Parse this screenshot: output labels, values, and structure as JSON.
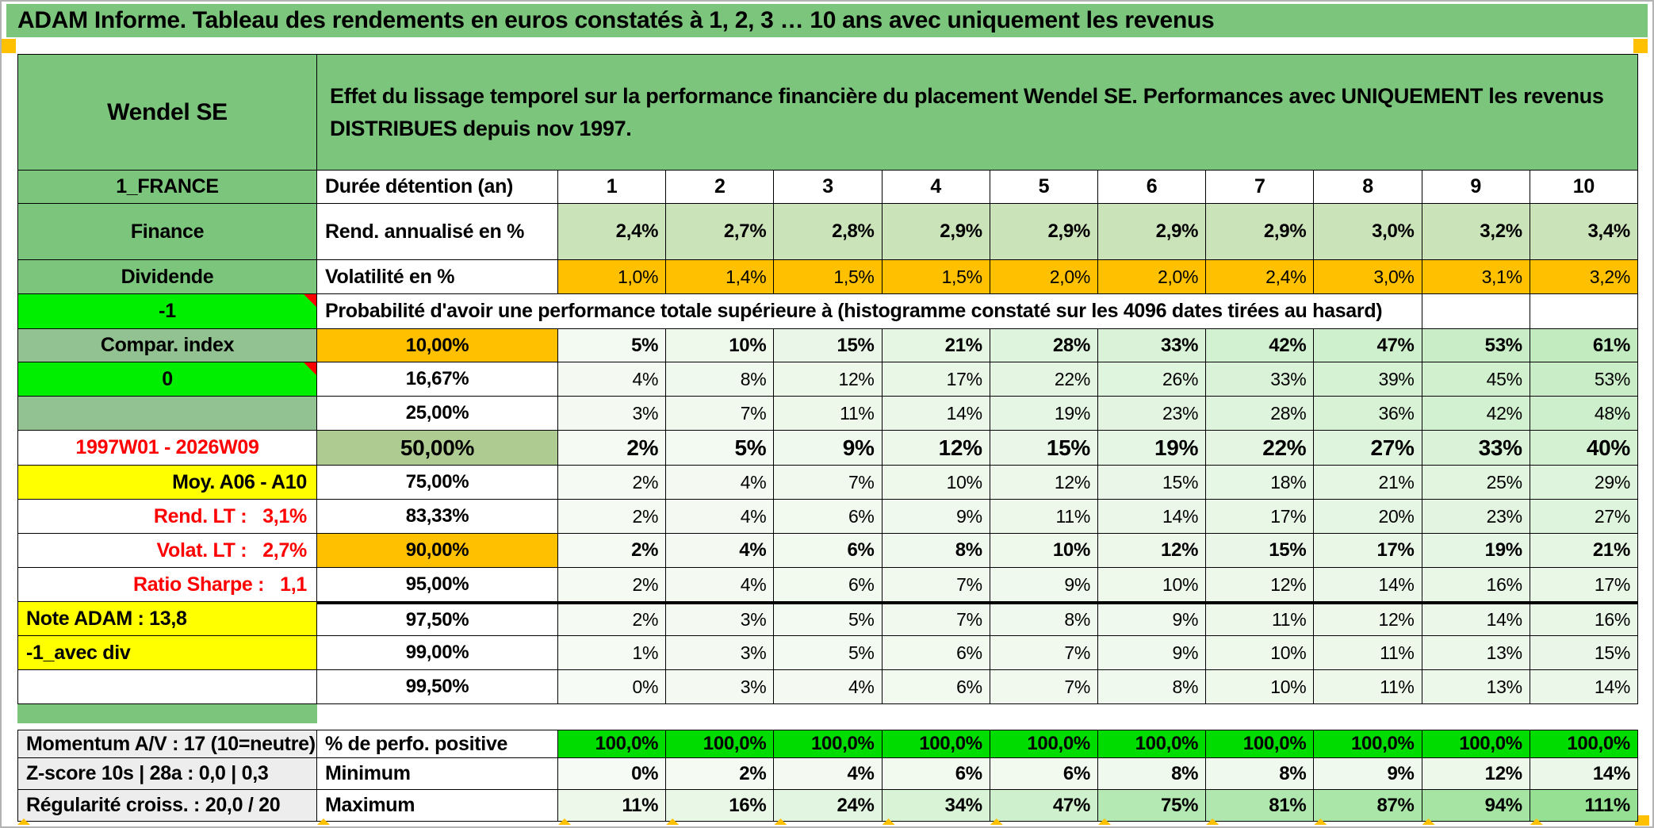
{
  "page_title": "ADAM Informe. Tableau des rendements en euros constatés à 1, 2, 3 … 10 ans avec uniquement les revenus",
  "colors": {
    "title_green": "#7CC57C",
    "sage_green": "#92C292",
    "olive_green": "#AECC92",
    "rend_green": "#CAE3B9",
    "orange": "#FFC000",
    "bright_green": "#00EE00",
    "perfo_green": "#00DB00",
    "yellow": "#FFFF00",
    "label_gray": "#EDEDED",
    "red_text": "#FF0000",
    "gradient_start": "#F7FBF5",
    "gradient_end": "#96E094"
  },
  "table": {
    "rows": [
      {
        "kind": "header",
        "left": "Wendel SE",
        "desc": "Effet du lissage temporel sur la performance financière du placement Wendel SE. Performances avec UNIQUEMENT les revenus DISTRIBUES depuis nov 1997."
      },
      {
        "kind": "colhead",
        "left": "1_FRANCE",
        "leftType": "green",
        "col2": "Durée détention (an)",
        "values": [
          "1",
          "2",
          "3",
          "4",
          "5",
          "6",
          "7",
          "8",
          "9",
          "10"
        ]
      },
      {
        "kind": "data",
        "left": "Finance",
        "leftType": "green",
        "col2": "Rend. annualisé en %",
        "col2Type": "text",
        "cellBg": "rend",
        "emphasis": "bold",
        "values": [
          "2,4%",
          "2,7%",
          "2,8%",
          "2,9%",
          "2,9%",
          "2,9%",
          "2,9%",
          "3,0%",
          "3,2%",
          "3,4%"
        ]
      },
      {
        "kind": "data",
        "left": "Dividende",
        "leftType": "green",
        "col2": "Volatilité en %",
        "col2Type": "text",
        "cellBg": "orange",
        "emphasis": "normal",
        "values": [
          "1,0%",
          "1,4%",
          "1,5%",
          "1,5%",
          "2,0%",
          "2,0%",
          "2,4%",
          "3,0%",
          "3,1%",
          "3,2%"
        ]
      },
      {
        "kind": "span",
        "left": "-1",
        "leftType": "bright",
        "span": "Probabilité d'avoir une performance totale supérieure à (histogramme constaté sur les 4096 dates tirées au hasard)"
      },
      {
        "kind": "data",
        "left": "Compar. index",
        "leftType": "sage",
        "col2": "10,00%",
        "col2Type": "orange",
        "cellBg": "gradient",
        "emphasis": "bold",
        "values": [
          5,
          10,
          15,
          21,
          28,
          33,
          42,
          47,
          53,
          61
        ]
      },
      {
        "kind": "data",
        "left": "0",
        "leftType": "bright",
        "col2": "16,67%",
        "col2Type": "plain",
        "cellBg": "gradient",
        "emphasis": "normal",
        "values": [
          4,
          8,
          12,
          17,
          22,
          26,
          33,
          39,
          45,
          53
        ]
      },
      {
        "kind": "data",
        "left": "",
        "leftType": "sage",
        "col2": "25,00%",
        "col2Type": "plain",
        "cellBg": "gradient",
        "emphasis": "normal",
        "values": [
          3,
          7,
          11,
          14,
          19,
          23,
          28,
          36,
          42,
          48
        ]
      },
      {
        "kind": "data",
        "left": "1997W01 - 2026W09",
        "leftType": "redCenter",
        "col2": "50,00%",
        "col2Type": "olive",
        "cellBg": "gradient",
        "emphasis": "big",
        "values": [
          2,
          5,
          9,
          12,
          15,
          19,
          22,
          27,
          33,
          40
        ]
      },
      {
        "kind": "data",
        "left": "Moy. A06 - A10",
        "leftType": "yellowRight",
        "col2": "75,00%",
        "col2Type": "plain",
        "cellBg": "gradient",
        "emphasis": "normal",
        "values": [
          2,
          4,
          7,
          10,
          12,
          15,
          18,
          21,
          25,
          29
        ]
      },
      {
        "kind": "data",
        "left": "Rend. LT :   3,1%",
        "leftType": "redRight",
        "col2": "83,33%",
        "col2Type": "plain",
        "cellBg": "gradient",
        "emphasis": "normal",
        "values": [
          2,
          4,
          6,
          9,
          11,
          14,
          17,
          20,
          23,
          27
        ]
      },
      {
        "kind": "data",
        "left": "Volat. LT :   2,7%",
        "leftType": "redRight",
        "col2": "90,00%",
        "col2Type": "orange",
        "cellBg": "gradient",
        "emphasis": "bold",
        "values": [
          2,
          4,
          6,
          8,
          10,
          12,
          15,
          17,
          19,
          21
        ]
      },
      {
        "kind": "data",
        "left": "Ratio Sharpe :   1,1",
        "leftType": "redRight",
        "col2": "95,00%",
        "col2Type": "plain",
        "cellBg": "gradient",
        "emphasis": "normal",
        "values": [
          2,
          4,
          6,
          7,
          9,
          10,
          12,
          14,
          16,
          17
        ]
      },
      {
        "kind": "data",
        "left": "Note ADAM : 13,8",
        "leftType": "yellowLeft",
        "col2": "97,50%",
        "col2Type": "plain",
        "cellBg": "gradient",
        "emphasis": "normal",
        "thickTop": true,
        "values": [
          2,
          3,
          5,
          7,
          8,
          9,
          11,
          12,
          14,
          16
        ]
      },
      {
        "kind": "data",
        "left": "-1_avec div",
        "leftType": "yellowLeft",
        "col2": "99,00%",
        "col2Type": "plain",
        "cellBg": "gradient",
        "emphasis": "normal",
        "values": [
          1,
          3,
          5,
          6,
          7,
          9,
          10,
          11,
          13,
          15
        ]
      },
      {
        "kind": "data",
        "left": "",
        "leftType": "white",
        "col2": "99,50%",
        "col2Type": "plain",
        "cellBg": "gradient",
        "emphasis": "normal",
        "values": [
          0,
          3,
          4,
          6,
          7,
          8,
          10,
          11,
          13,
          14
        ]
      },
      {
        "kind": "separator"
      },
      {
        "kind": "data",
        "left": "Momentum A/V : 17 (10=neutre)",
        "leftType": "grayLeft",
        "col2": "% de perfo. positive",
        "col2Type": "text",
        "cellBg": "bright",
        "emphasis": "bold",
        "topBorder": true,
        "values": [
          "100,0%",
          "100,0%",
          "100,0%",
          "100,0%",
          "100,0%",
          "100,0%",
          "100,0%",
          "100,0%",
          "100,0%",
          "100,0%"
        ]
      },
      {
        "kind": "data",
        "left": "Z-score 10s | 28a : 0,0 | 0,3",
        "leftType": "grayLeft",
        "col2": "Minimum",
        "col2Type": "text",
        "cellBg": "gradient",
        "emphasis": "bold",
        "values": [
          0,
          2,
          4,
          6,
          6,
          8,
          8,
          9,
          12,
          14
        ]
      },
      {
        "kind": "data",
        "left": "Régularité croiss. : 20,0 / 20",
        "leftType": "grayLeft",
        "col2": "Maximum",
        "col2Type": "text",
        "cellBg": "gradient",
        "emphasis": "bold",
        "values": [
          11,
          16,
          24,
          34,
          47,
          75,
          81,
          87,
          94,
          111
        ]
      }
    ]
  }
}
